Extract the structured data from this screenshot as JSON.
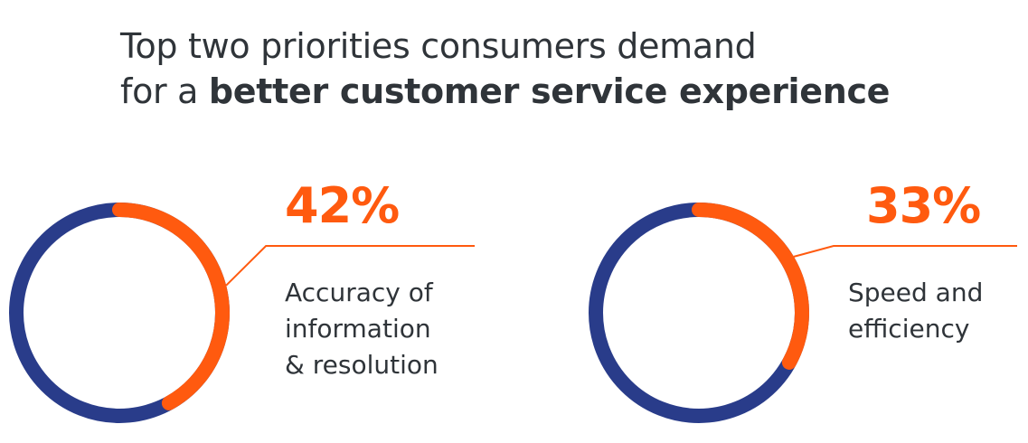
{
  "title": {
    "line1": "Top two priorities consumers demand",
    "line2_prefix": "for a ",
    "line2_bold": "better customer service experience"
  },
  "colors": {
    "track": "#293c8a",
    "accent": "#ff5a0f",
    "text": "#2f3439"
  },
  "chart_data": {
    "type": "pie",
    "title": "Top two priorities consumers demand for a better customer service experience",
    "unit": "%",
    "items": [
      {
        "value": 42,
        "label": "42%",
        "description": [
          "Accuracy of",
          "information",
          "& resolution"
        ]
      },
      {
        "value": 33,
        "label": "33%",
        "description": [
          "Speed and",
          "efficiency"
        ]
      }
    ]
  }
}
